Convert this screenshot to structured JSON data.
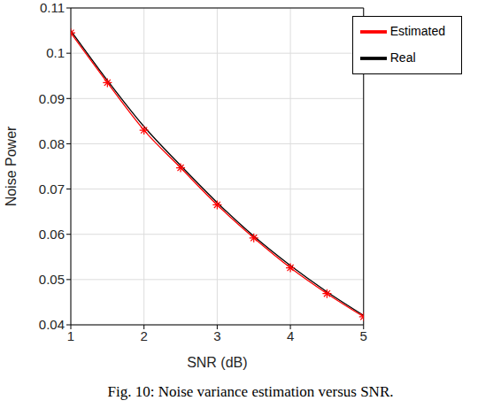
{
  "chart_data": {
    "type": "line",
    "title": "Fig. 10: Noise variance estimation versus SNR.",
    "x_label": "SNR (dB)",
    "y_label": "Noise Power",
    "x": [
      1,
      1.5,
      2,
      2.5,
      3,
      3.5,
      4,
      4.5,
      5
    ],
    "series": [
      {
        "name": "Real",
        "color": "#000000",
        "marker": "none",
        "line_style": "solid",
        "values": [
          0.105,
          0.094,
          0.0838,
          0.0752,
          0.067,
          0.0596,
          0.0531,
          0.0473,
          0.0421
        ]
      },
      {
        "name": "Estimated",
        "color": "#ff0000",
        "marker": "asterisk",
        "line_style": "solid",
        "values": [
          0.1045,
          0.0935,
          0.083,
          0.0747,
          0.0665,
          0.0592,
          0.0526,
          0.0469,
          0.0418
        ]
      }
    ],
    "xlim": [
      1,
      5
    ],
    "ylim": [
      0.04,
      0.11
    ],
    "xticks": [
      1,
      2,
      3,
      4,
      5
    ],
    "yticks": [
      0.04,
      0.05,
      0.06,
      0.07,
      0.08,
      0.09,
      0.1,
      0.11
    ],
    "grid": true,
    "legend": "upper right"
  }
}
